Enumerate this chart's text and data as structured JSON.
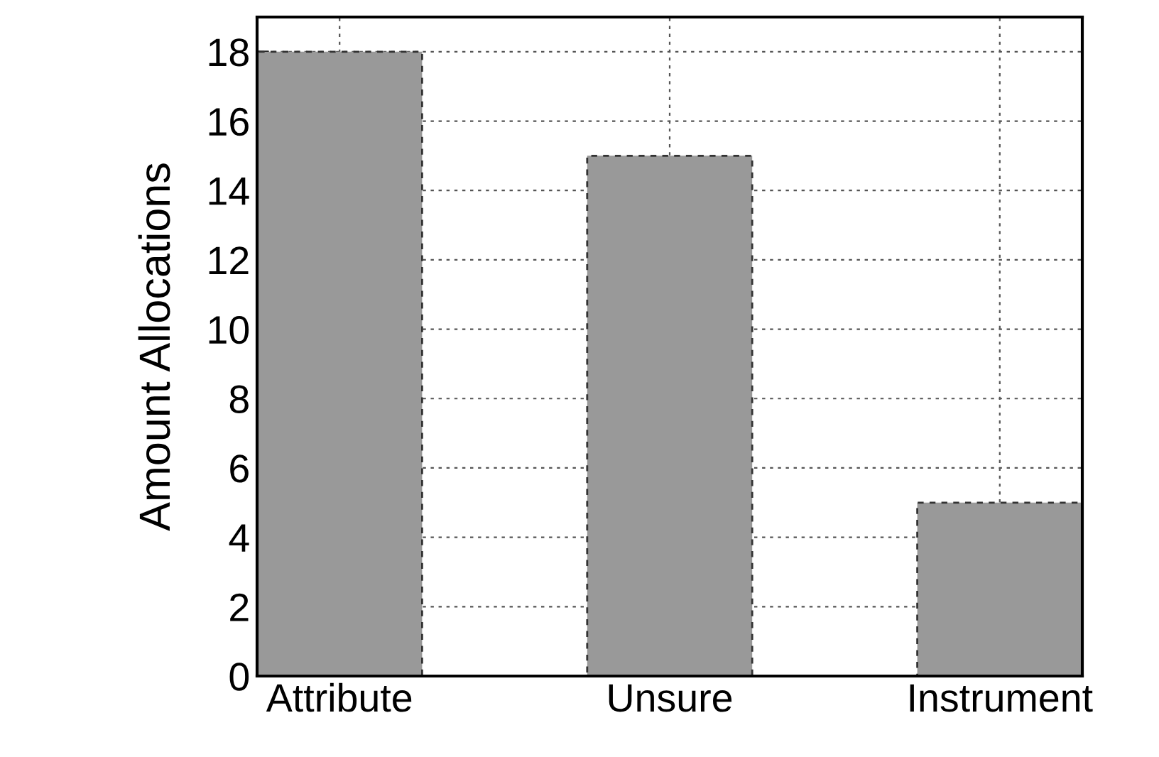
{
  "chart_data": {
    "type": "bar",
    "ylabel": "Amount Allocations",
    "categories": [
      "Attribute",
      "Unsure",
      "Instrument"
    ],
    "values": [
      18,
      15,
      5
    ],
    "color": "#999999",
    "ylim": [
      0,
      19
    ],
    "yticks": [
      0,
      2,
      4,
      6,
      8,
      10,
      12,
      14,
      16,
      18
    ],
    "grid": true
  }
}
